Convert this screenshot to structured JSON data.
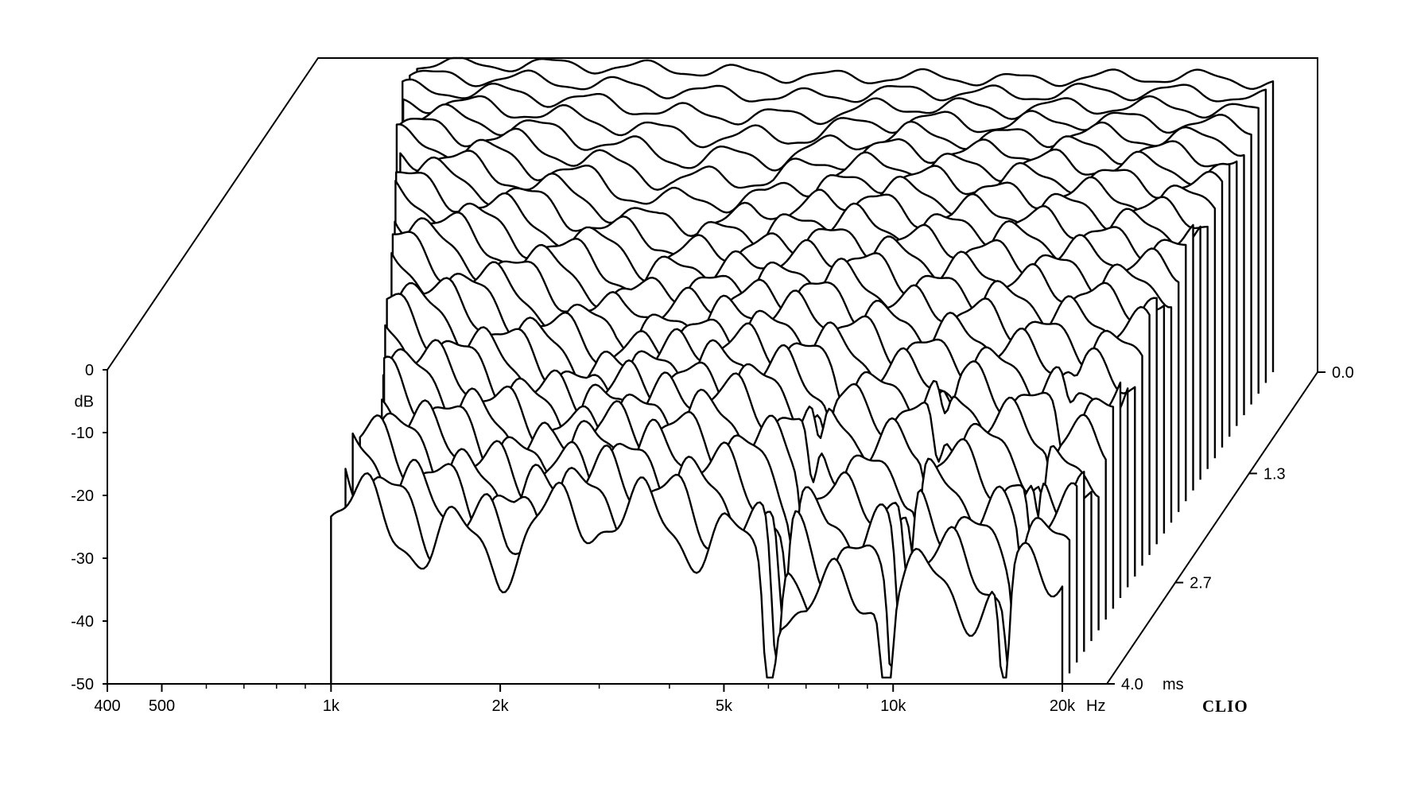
{
  "chart_data": {
    "type": "line",
    "title": "",
    "brand": "CLIO",
    "xscale": "log",
    "xlim": [
      400,
      24000
    ],
    "ylim": [
      -50,
      0
    ],
    "zlim": [
      0,
      4.0
    ],
    "grid": false,
    "legend": "none",
    "x_ticks": [
      400,
      500,
      1000,
      2000,
      5000,
      10000,
      20000
    ],
    "x_tick_labels": [
      "400",
      "500",
      "1k",
      "2k",
      "5k",
      "10k",
      "20k"
    ],
    "x_unit": "Hz",
    "x_minor_ticks": [
      600,
      700,
      800,
      900,
      3000,
      4000,
      6000,
      7000,
      8000,
      9000
    ],
    "y_ticks": [
      0,
      -10,
      -20,
      -30,
      -40,
      -50
    ],
    "y_tick_labels": [
      "0",
      "-10",
      "-20",
      "-30",
      "-40",
      "-50"
    ],
    "y_unit": "dB",
    "z_ticks": [
      0.0,
      1.3,
      2.7,
      4.0
    ],
    "z_tick_labels": [
      "0.0",
      "1.3",
      "2.7",
      "4.0"
    ],
    "z_unit": "ms",
    "slice_count": 30,
    "slice_step_ms": 0.138,
    "slice_starts_hz": [
      600,
      600,
      600,
      620,
      640,
      650,
      660,
      690,
      700,
      720,
      740,
      760,
      780,
      800,
      820,
      840,
      860,
      880,
      900,
      920,
      950,
      980,
      1000,
      1000,
      1000,
      1000,
      1000,
      1000,
      1000,
      1000
    ],
    "series": [
      {
        "values_db_at_freqs": [
          700,
          1000,
          1500,
          2000,
          2500,
          3000,
          4000,
          5000,
          7000,
          10000,
          15000,
          20000
        ],
        "x": [
          700,
          1000,
          1500,
          2000,
          2500,
          3000,
          4000,
          5000,
          7000,
          10000,
          15000,
          20000
        ],
        "y": [
          -1,
          -1,
          -1.5,
          -2,
          -2.5,
          -3,
          -3,
          -3,
          -3.5,
          -3,
          -3,
          -4
        ]
      },
      {
        "x": [
          700,
          1000,
          1500,
          2000,
          2500,
          3000,
          4000,
          5000,
          7000,
          10000,
          15000,
          20000
        ],
        "y": [
          -3,
          -6,
          -11,
          -15,
          -14,
          -14,
          -9,
          -7,
          -8,
          -7,
          -8,
          -9
        ]
      },
      {
        "x": [
          700,
          1000,
          1500,
          2000,
          2500,
          3000,
          4000,
          5000,
          7000,
          10000,
          15000,
          20000
        ],
        "y": [
          -6,
          -12,
          -19,
          -24,
          -20,
          -17,
          -14,
          -12,
          -14,
          -13,
          -13,
          -12
        ]
      },
      {
        "x": [
          700,
          1000,
          1500,
          2000,
          2500,
          3000,
          4000,
          5000,
          7000,
          10000,
          15000,
          20000
        ],
        "y": [
          -10,
          -17,
          -23,
          -26,
          -20,
          -20,
          -17,
          -18,
          -22,
          -20,
          -22,
          -20
        ]
      },
      {
        "x": [
          700,
          1000,
          1500,
          2000,
          2500,
          3000,
          4000,
          5000,
          7000,
          10000,
          15000,
          20000
        ],
        "y": [
          -14,
          -21,
          -27,
          -29,
          -24,
          -22,
          -25,
          -27,
          -38,
          -34,
          -36,
          -30
        ]
      }
    ]
  }
}
